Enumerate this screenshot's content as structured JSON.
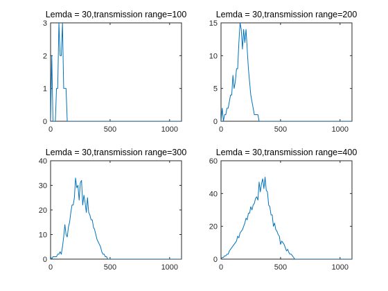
{
  "colors": {
    "series": "#0072bd",
    "axis": "#262626",
    "background": "#ffffff"
  },
  "chart_data": [
    {
      "type": "line",
      "title": "Lemda = 30,transmission range=100",
      "xlabel": "",
      "ylabel": "",
      "xlim": [
        0,
        1100
      ],
      "ylim": [
        0,
        3
      ],
      "xticks": [
        0,
        500,
        1000
      ],
      "yticks": [
        0,
        1,
        2,
        3
      ],
      "grid": false,
      "x": [
        0,
        10,
        20,
        30,
        40,
        50,
        60,
        70,
        80,
        90,
        100,
        110,
        120,
        130,
        140,
        150,
        200,
        300,
        400,
        500,
        600,
        700,
        800,
        900,
        1000,
        1100
      ],
      "y": [
        0,
        2,
        0,
        0,
        0,
        1,
        1,
        3,
        2,
        2,
        3,
        1,
        1,
        1,
        0,
        0,
        0,
        0,
        0,
        0,
        0,
        0,
        0,
        0,
        0,
        0
      ]
    },
    {
      "type": "line",
      "title": "Lemda = 30,transmission range=200",
      "xlabel": "",
      "ylabel": "",
      "xlim": [
        0,
        1100
      ],
      "ylim": [
        0,
        15
      ],
      "xticks": [
        0,
        500,
        1000
      ],
      "yticks": [
        0,
        5,
        10,
        15
      ],
      "grid": false,
      "x": [
        0,
        10,
        20,
        30,
        40,
        50,
        60,
        70,
        80,
        90,
        100,
        110,
        120,
        130,
        140,
        150,
        160,
        170,
        180,
        190,
        200,
        210,
        220,
        230,
        240,
        250,
        260,
        270,
        280,
        290,
        300,
        310,
        320,
        330,
        340,
        400,
        500,
        600,
        700,
        800,
        900,
        1000,
        1100
      ],
      "y": [
        0,
        2,
        0,
        1,
        1,
        2,
        2,
        3,
        4,
        4,
        7,
        5,
        6,
        8,
        8,
        12,
        15,
        14,
        11,
        14,
        12,
        14,
        11,
        8,
        6,
        4,
        3,
        2,
        1,
        1,
        1,
        1,
        0,
        0,
        0,
        0,
        0,
        0,
        0,
        0,
        0,
        0,
        0
      ]
    },
    {
      "type": "line",
      "title": "Lemda = 30,transmission range=300",
      "xlabel": "",
      "ylabel": "",
      "xlim": [
        0,
        1100
      ],
      "ylim": [
        0,
        40
      ],
      "xticks": [
        0,
        500,
        1000
      ],
      "yticks": [
        0,
        10,
        20,
        30,
        40
      ],
      "grid": false,
      "x": [
        0,
        10,
        20,
        30,
        40,
        50,
        60,
        70,
        80,
        90,
        100,
        110,
        120,
        130,
        140,
        150,
        160,
        170,
        180,
        190,
        200,
        210,
        220,
        230,
        240,
        250,
        260,
        270,
        280,
        290,
        300,
        310,
        320,
        330,
        340,
        350,
        360,
        370,
        380,
        390,
        400,
        410,
        420,
        430,
        440,
        450,
        460,
        470,
        480,
        500,
        600,
        700,
        800,
        900,
        1000,
        1100
      ],
      "y": [
        1,
        0,
        1,
        1,
        1,
        1,
        2,
        2,
        3,
        2,
        5,
        9,
        14,
        10,
        9,
        13,
        15,
        19,
        22,
        22,
        25,
        33,
        29,
        30,
        24,
        31,
        32,
        22,
        26,
        23,
        19,
        25,
        19,
        18,
        16,
        16,
        13,
        12,
        10,
        8,
        7,
        6,
        5,
        3,
        2,
        2,
        1,
        1,
        0,
        0,
        0,
        0,
        0,
        0,
        0,
        0
      ]
    },
    {
      "type": "line",
      "title": "Lemda = 30,transmission range=400",
      "xlabel": "",
      "ylabel": "",
      "xlim": [
        0,
        1100
      ],
      "ylim": [
        0,
        60
      ],
      "xticks": [
        0,
        500,
        1000
      ],
      "yticks": [
        0,
        20,
        40,
        60
      ],
      "grid": false,
      "x": [
        0,
        10,
        20,
        30,
        40,
        50,
        60,
        70,
        80,
        90,
        100,
        110,
        120,
        130,
        140,
        150,
        160,
        170,
        180,
        190,
        200,
        210,
        220,
        230,
        240,
        250,
        260,
        270,
        280,
        290,
        300,
        310,
        320,
        330,
        340,
        350,
        360,
        370,
        380,
        390,
        400,
        410,
        420,
        430,
        440,
        450,
        460,
        470,
        480,
        490,
        500,
        510,
        520,
        530,
        540,
        550,
        560,
        570,
        580,
        590,
        600,
        610,
        620,
        700,
        800,
        900,
        1000,
        1100
      ],
      "y": [
        0,
        1,
        1,
        2,
        2,
        3,
        3,
        5,
        6,
        7,
        8,
        9,
        10,
        11,
        14,
        13,
        16,
        17,
        18,
        20,
        22,
        25,
        24,
        28,
        28,
        32,
        30,
        33,
        34,
        37,
        38,
        36,
        47,
        41,
        46,
        49,
        43,
        50,
        42,
        41,
        33,
        32,
        27,
        27,
        20,
        22,
        18,
        17,
        15,
        14,
        9,
        11,
        10,
        9,
        7,
        5,
        6,
        4,
        3,
        3,
        2,
        1,
        0,
        0,
        0,
        0,
        0,
        0
      ]
    }
  ]
}
